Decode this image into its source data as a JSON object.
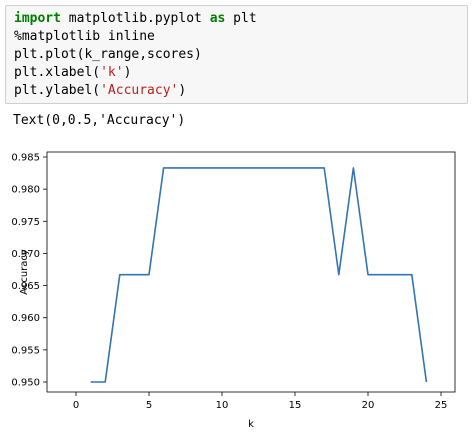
{
  "code_cell": {
    "lines": [
      [
        {
          "t": "import",
          "c": "kw"
        },
        {
          "t": " matplotlib.pyplot ",
          "c": ""
        },
        {
          "t": "as",
          "c": "kw"
        },
        {
          "t": " plt",
          "c": ""
        }
      ],
      [
        {
          "t": "%matplotlib inline",
          "c": ""
        }
      ],
      [
        {
          "t": "plt.plot(k_range,scores)",
          "c": ""
        }
      ],
      [
        {
          "t": "plt.xlabel(",
          "c": ""
        },
        {
          "t": "'k'",
          "c": "str"
        },
        {
          "t": ")",
          "c": ""
        }
      ],
      [
        {
          "t": "plt.ylabel(",
          "c": ""
        },
        {
          "t": "'Accuracy'",
          "c": "str"
        },
        {
          "t": ")",
          "c": ""
        }
      ]
    ]
  },
  "output_text": "Text(0,0.5,'Accuracy')",
  "colors": {
    "line": "#3274b4",
    "keyword": "#008000",
    "string": "#ba2121"
  },
  "chart_data": {
    "type": "line",
    "xlabel": "k",
    "ylabel": "Accuracy",
    "xlim": [
      0,
      25
    ],
    "ylim": [
      0.95,
      0.985
    ],
    "xticks": [
      "0",
      "5",
      "10",
      "15",
      "20",
      "25"
    ],
    "yticks": [
      "0.950",
      "0.955",
      "0.960",
      "0.965",
      "0.970",
      "0.975",
      "0.980",
      "0.985"
    ],
    "grid": false,
    "x": [
      1,
      2,
      3,
      4,
      5,
      6,
      7,
      8,
      9,
      10,
      11,
      12,
      13,
      14,
      15,
      16,
      17,
      18,
      19,
      20,
      21,
      22,
      23,
      24
    ],
    "values": [
      0.95,
      0.95,
      0.9667,
      0.9667,
      0.9667,
      0.9833,
      0.9833,
      0.9833,
      0.9833,
      0.9833,
      0.9833,
      0.9833,
      0.9833,
      0.9833,
      0.9833,
      0.9833,
      0.9833,
      0.9667,
      0.9833,
      0.9667,
      0.9667,
      0.9667,
      0.9667,
      0.95
    ]
  }
}
